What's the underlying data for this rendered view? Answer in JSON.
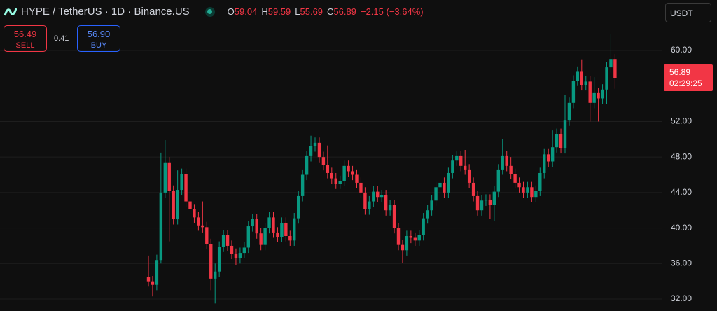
{
  "header": {
    "symbol": "HYPE / TetherUS · 1D · Binance.US",
    "ohlc": [
      {
        "key": "O",
        "value": "59.04"
      },
      {
        "key": "H",
        "value": "59.59"
      },
      {
        "key": "L",
        "value": "55.69"
      },
      {
        "key": "C",
        "value": "56.89"
      }
    ],
    "change": "−2.15 (−3.64%)"
  },
  "trade": {
    "sell": {
      "price": "56.49",
      "label": "SELL"
    },
    "spread": "0.41",
    "buy": {
      "price": "56.90",
      "label": "BUY"
    }
  },
  "currency": "USDT",
  "chart_data": {
    "type": "candlestick",
    "open": [
      34.5,
      34.0,
      33.6,
      36.4,
      44.0,
      47.4,
      44.2,
      41.0,
      44.3,
      46.1,
      43.0,
      42.1,
      41.2,
      40.3,
      40.1,
      38.2,
      34.3,
      35.1,
      37.9,
      39.2,
      38.0,
      37.1,
      36.6,
      37.2,
      37.8,
      40.2,
      41.0,
      39.4,
      38.1,
      40.0,
      41.2,
      39.5,
      39.0,
      40.6,
      39.1,
      38.6,
      41.1,
      43.6,
      46.0,
      48.1,
      49.2,
      49.6,
      48.0,
      47.1,
      46.2,
      45.6,
      45.0,
      45.3,
      47.0,
      46.4,
      46.0,
      45.1,
      44.0,
      42.1,
      43.0,
      44.1,
      43.5,
      43.7,
      42.0,
      42.6,
      40.0,
      38.1,
      37.5,
      39.1,
      38.9,
      38.6,
      39.2,
      41.1,
      42.0,
      43.1,
      44.6,
      45.1,
      44.0,
      46.2,
      47.6,
      48.1,
      47.0,
      46.6,
      45.1,
      43.6,
      42.0,
      43.1,
      43.2,
      42.6,
      44.1,
      46.6,
      48.1,
      47.0,
      46.1,
      45.1,
      44.6,
      44.0,
      44.6,
      43.5,
      44.2,
      46.2,
      48.3,
      47.5,
      49.1,
      50.6,
      49.0,
      52.1,
      54.1,
      56.6,
      57.6,
      56.1,
      56.5,
      54.1,
      55.2,
      54.6,
      55.6,
      58.1,
      59.04
    ],
    "high": [
      36.9,
      34.6,
      37.0,
      48.5,
      49.9,
      48.0,
      44.8,
      46.5,
      46.7,
      46.7,
      43.6,
      42.7,
      41.8,
      43.0,
      40.7,
      38.8,
      36.0,
      38.5,
      39.8,
      39.8,
      38.6,
      37.7,
      37.8,
      38.4,
      40.8,
      41.6,
      41.6,
      40.0,
      40.6,
      41.8,
      41.8,
      40.1,
      41.2,
      41.2,
      39.7,
      41.7,
      44.2,
      46.6,
      48.7,
      50.4,
      50.2,
      50.2,
      48.6,
      49.3,
      46.8,
      46.2,
      45.9,
      47.6,
      47.6,
      47.0,
      46.6,
      45.7,
      44.6,
      43.6,
      44.7,
      44.7,
      44.3,
      44.3,
      43.2,
      43.2,
      40.6,
      38.7,
      39.7,
      39.7,
      39.5,
      39.8,
      41.7,
      42.6,
      43.7,
      45.2,
      46.3,
      45.7,
      46.8,
      48.2,
      48.7,
      48.7,
      48.8,
      47.2,
      45.7,
      44.2,
      43.7,
      43.8,
      43.8,
      44.7,
      47.2,
      50.0,
      48.7,
      48.0,
      46.7,
      45.7,
      45.2,
      45.2,
      45.2,
      44.8,
      46.8,
      48.9,
      48.9,
      51.0,
      51.2,
      51.2,
      55.0,
      54.7,
      57.2,
      58.2,
      59.0,
      57.1,
      57.1,
      57.0,
      55.8,
      56.2,
      58.7,
      61.9,
      59.59
    ],
    "low": [
      33.4,
      32.3,
      33.0,
      36.0,
      43.4,
      38.5,
      40.4,
      40.4,
      43.7,
      42.4,
      39.5,
      40.6,
      39.7,
      39.5,
      37.6,
      33.0,
      31.5,
      34.5,
      37.3,
      37.4,
      36.5,
      35.8,
      36.0,
      36.6,
      37.2,
      39.6,
      38.8,
      37.5,
      37.5,
      39.4,
      38.9,
      38.4,
      38.4,
      38.5,
      38.0,
      38.0,
      40.5,
      43.0,
      45.4,
      47.5,
      48.6,
      47.4,
      46.5,
      45.6,
      45.0,
      44.4,
      44.4,
      44.7,
      45.8,
      45.4,
      44.5,
      43.4,
      41.5,
      41.5,
      42.4,
      42.9,
      42.9,
      41.4,
      41.4,
      39.4,
      37.5,
      36.1,
      36.9,
      38.3,
      38.0,
      38.0,
      38.6,
      40.5,
      41.4,
      42.5,
      44.0,
      43.4,
      43.4,
      45.6,
      47.0,
      46.4,
      46.0,
      44.5,
      43.0,
      41.4,
      41.4,
      42.5,
      41.0,
      40.8,
      43.5,
      46.0,
      46.4,
      45.5,
      44.5,
      44.0,
      43.4,
      43.4,
      42.9,
      42.9,
      43.6,
      45.6,
      46.9,
      46.9,
      48.5,
      48.4,
      48.4,
      51.5,
      53.5,
      56.0,
      55.5,
      55.5,
      52.0,
      53.5,
      52.0,
      54.0,
      54.0,
      57.5,
      55.69
    ],
    "close": [
      34.0,
      33.6,
      36.4,
      44.0,
      47.4,
      44.2,
      41.0,
      44.3,
      46.1,
      43.0,
      42.1,
      41.2,
      40.3,
      40.1,
      38.2,
      34.3,
      35.1,
      37.9,
      39.2,
      38.0,
      37.1,
      36.6,
      37.2,
      37.8,
      40.2,
      41.0,
      39.4,
      38.1,
      40.0,
      41.2,
      39.5,
      39.0,
      40.6,
      39.1,
      38.6,
      41.1,
      43.6,
      46.0,
      48.1,
      49.2,
      49.6,
      48.0,
      47.1,
      46.2,
      45.6,
      45.0,
      45.3,
      47.0,
      46.4,
      46.0,
      45.1,
      44.0,
      42.1,
      43.0,
      44.1,
      43.5,
      43.7,
      42.0,
      42.6,
      40.0,
      38.1,
      37.5,
      39.1,
      38.9,
      38.6,
      39.2,
      41.1,
      42.0,
      43.1,
      44.6,
      45.1,
      44.0,
      46.2,
      47.6,
      48.1,
      47.0,
      46.6,
      45.1,
      43.6,
      42.0,
      43.1,
      43.2,
      42.6,
      44.1,
      46.6,
      48.1,
      47.0,
      46.1,
      45.1,
      44.6,
      44.0,
      44.6,
      43.5,
      44.2,
      46.2,
      48.3,
      47.5,
      49.1,
      50.6,
      49.0,
      52.1,
      54.1,
      56.6,
      57.6,
      56.1,
      56.5,
      54.1,
      55.2,
      54.6,
      55.6,
      58.1,
      59.04,
      56.89
    ],
    "up_color": "#089981",
    "down_color": "#f23645",
    "ylim": [
      30.66,
      65.68
    ],
    "yticks": [
      {
        "value": 32,
        "label": "32.00"
      },
      {
        "value": 36,
        "label": "36.00"
      },
      {
        "value": 40,
        "label": "40.00"
      },
      {
        "value": 44,
        "label": "44.00"
      },
      {
        "value": 48,
        "label": "48.00"
      },
      {
        "value": 52,
        "label": "52.00"
      },
      {
        "value": 60,
        "label": "60.00"
      }
    ],
    "grid": true,
    "last_price": {
      "value": 56.89,
      "label": "56.89",
      "countdown": "02:29:25"
    }
  }
}
